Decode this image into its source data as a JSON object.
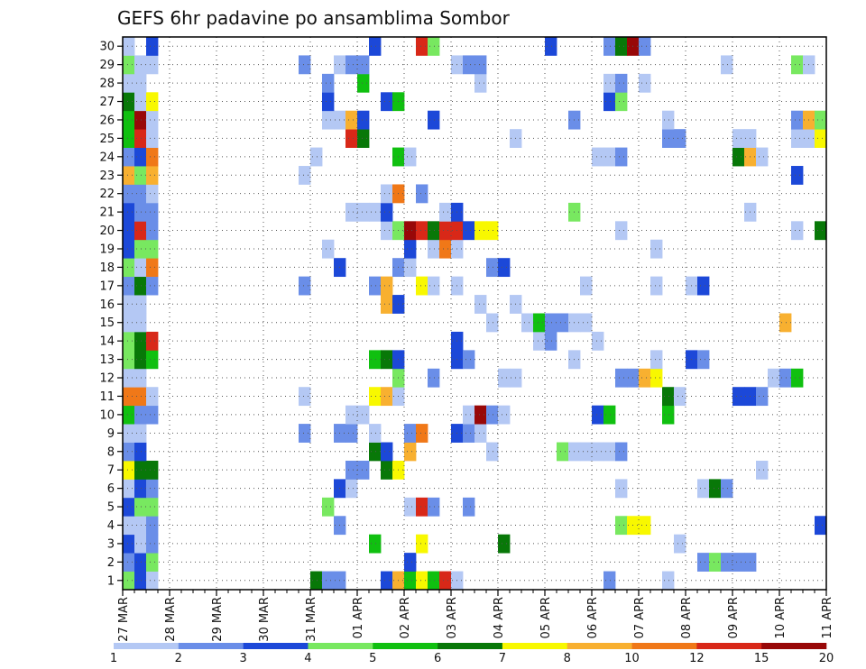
{
  "chart_data": {
    "type": "heatmap",
    "title": "GEFS 6hr padavine po ansamblima Sombor",
    "xlabel": "",
    "ylabel": "",
    "y_categories": [
      1,
      2,
      3,
      4,
      5,
      6,
      7,
      8,
      9,
      10,
      11,
      12,
      13,
      14,
      15,
      16,
      17,
      18,
      19,
      20,
      21,
      22,
      23,
      24,
      25,
      26,
      27,
      28,
      29,
      30
    ],
    "x_tick_labels": [
      "27 MAR",
      "28 MAR",
      "29 MAR",
      "30 MAR",
      "31 MAR",
      "01 APR",
      "02 APR",
      "03 APR",
      "04 APR",
      "05 APR",
      "06 APR",
      "07 APR",
      "08 APR",
      "09 APR",
      "10 APR",
      "11 APR"
    ],
    "x_steps_total": 60,
    "steps_per_day": 4,
    "grid": true,
    "legend": {
      "placement": "bottom",
      "tick_labels": [
        "1",
        "2",
        "3",
        "4",
        "5",
        "6",
        "7",
        "8",
        "10",
        "12",
        "15",
        "20"
      ],
      "colors": [
        "#b4c8f4",
        "#6a8ee8",
        "#1c48d8",
        "#78e860",
        "#10c010",
        "#087808",
        "#f8f800",
        "#f8b030",
        "#f07818",
        "#d82818",
        "#980808"
      ]
    },
    "cells": [
      [
        1,
        0,
        4
      ],
      [
        1,
        1,
        3
      ],
      [
        1,
        2,
        1
      ],
      [
        1,
        16,
        6
      ],
      [
        1,
        17,
        2
      ],
      [
        1,
        18,
        2
      ],
      [
        1,
        22,
        3
      ],
      [
        1,
        23,
        8
      ],
      [
        1,
        24,
        5
      ],
      [
        1,
        25,
        7
      ],
      [
        1,
        26,
        5
      ],
      [
        1,
        27,
        10
      ],
      [
        1,
        28,
        1
      ],
      [
        1,
        41,
        2
      ],
      [
        1,
        46,
        1
      ],
      [
        2,
        0,
        2
      ],
      [
        2,
        1,
        3
      ],
      [
        2,
        2,
        4
      ],
      [
        2,
        24,
        3
      ],
      [
        2,
        49,
        2
      ],
      [
        2,
        50,
        4
      ],
      [
        2,
        51,
        2
      ],
      [
        2,
        52,
        2
      ],
      [
        2,
        53,
        2
      ],
      [
        3,
        0,
        3
      ],
      [
        3,
        1,
        1
      ],
      [
        3,
        2,
        2
      ],
      [
        3,
        21,
        5
      ],
      [
        3,
        25,
        7
      ],
      [
        3,
        32,
        6
      ],
      [
        3,
        47,
        1
      ],
      [
        4,
        0,
        1
      ],
      [
        4,
        1,
        1
      ],
      [
        4,
        2,
        2
      ],
      [
        4,
        18,
        2
      ],
      [
        4,
        42,
        4
      ],
      [
        4,
        43,
        7
      ],
      [
        4,
        44,
        7
      ],
      [
        4,
        59,
        3
      ],
      [
        5,
        0,
        3
      ],
      [
        5,
        1,
        4
      ],
      [
        5,
        2,
        4
      ],
      [
        5,
        17,
        4
      ],
      [
        5,
        24,
        1
      ],
      [
        5,
        25,
        10
      ],
      [
        5,
        26,
        2
      ],
      [
        5,
        29,
        2
      ],
      [
        6,
        0,
        1
      ],
      [
        6,
        1,
        3
      ],
      [
        6,
        2,
        2
      ],
      [
        6,
        18,
        3
      ],
      [
        6,
        19,
        1
      ],
      [
        6,
        42,
        1
      ],
      [
        6,
        49,
        1
      ],
      [
        6,
        50,
        6
      ],
      [
        6,
        51,
        2
      ],
      [
        7,
        0,
        7
      ],
      [
        7,
        1,
        6
      ],
      [
        7,
        2,
        6
      ],
      [
        7,
        19,
        2
      ],
      [
        7,
        20,
        2
      ],
      [
        7,
        22,
        6
      ],
      [
        7,
        23,
        7
      ],
      [
        7,
        54,
        1
      ],
      [
        8,
        0,
        2
      ],
      [
        8,
        1,
        3
      ],
      [
        8,
        21,
        6
      ],
      [
        8,
        22,
        3
      ],
      [
        8,
        24,
        8
      ],
      [
        8,
        31,
        1
      ],
      [
        8,
        37,
        4
      ],
      [
        8,
        38,
        1
      ],
      [
        8,
        39,
        1
      ],
      [
        8,
        40,
        1
      ],
      [
        8,
        41,
        1
      ],
      [
        8,
        42,
        2
      ],
      [
        9,
        0,
        1
      ],
      [
        9,
        1,
        1
      ],
      [
        9,
        15,
        2
      ],
      [
        9,
        18,
        2
      ],
      [
        9,
        19,
        2
      ],
      [
        9,
        21,
        1
      ],
      [
        9,
        24,
        2
      ],
      [
        9,
        25,
        9
      ],
      [
        9,
        28,
        3
      ],
      [
        9,
        29,
        2
      ],
      [
        9,
        30,
        1
      ],
      [
        10,
        0,
        5
      ],
      [
        10,
        1,
        2
      ],
      [
        10,
        2,
        2
      ],
      [
        10,
        19,
        1
      ],
      [
        10,
        20,
        1
      ],
      [
        10,
        29,
        1
      ],
      [
        10,
        30,
        11
      ],
      [
        10,
        31,
        2
      ],
      [
        10,
        32,
        1
      ],
      [
        10,
        40,
        3
      ],
      [
        10,
        41,
        5
      ],
      [
        10,
        46,
        5
      ],
      [
        11,
        0,
        9
      ],
      [
        11,
        1,
        9
      ],
      [
        11,
        2,
        1
      ],
      [
        11,
        15,
        1
      ],
      [
        11,
        21,
        7
      ],
      [
        11,
        22,
        8
      ],
      [
        11,
        23,
        1
      ],
      [
        11,
        46,
        6
      ],
      [
        11,
        47,
        1
      ],
      [
        11,
        52,
        3
      ],
      [
        11,
        53,
        3
      ],
      [
        11,
        54,
        2
      ],
      [
        12,
        0,
        1
      ],
      [
        12,
        1,
        1
      ],
      [
        12,
        23,
        4
      ],
      [
        12,
        26,
        2
      ],
      [
        12,
        32,
        1
      ],
      [
        12,
        33,
        1
      ],
      [
        12,
        42,
        2
      ],
      [
        12,
        43,
        2
      ],
      [
        12,
        44,
        8
      ],
      [
        12,
        45,
        7
      ],
      [
        12,
        55,
        1
      ],
      [
        12,
        56,
        2
      ],
      [
        12,
        57,
        5
      ],
      [
        13,
        0,
        4
      ],
      [
        13,
        1,
        6
      ],
      [
        13,
        2,
        5
      ],
      [
        13,
        21,
        5
      ],
      [
        13,
        22,
        6
      ],
      [
        13,
        23,
        3
      ],
      [
        13,
        28,
        3
      ],
      [
        13,
        29,
        2
      ],
      [
        13,
        38,
        1
      ],
      [
        13,
        45,
        1
      ],
      [
        13,
        48,
        3
      ],
      [
        13,
        49,
        2
      ],
      [
        14,
        0,
        4
      ],
      [
        14,
        1,
        6
      ],
      [
        14,
        2,
        10
      ],
      [
        14,
        28,
        3
      ],
      [
        14,
        35,
        1
      ],
      [
        14,
        36,
        2
      ],
      [
        14,
        40,
        1
      ],
      [
        15,
        0,
        1
      ],
      [
        15,
        1,
        1
      ],
      [
        15,
        31,
        1
      ],
      [
        15,
        34,
        1
      ],
      [
        15,
        35,
        5
      ],
      [
        15,
        36,
        2
      ],
      [
        15,
        37,
        2
      ],
      [
        15,
        38,
        1
      ],
      [
        15,
        39,
        1
      ],
      [
        15,
        56,
        8
      ],
      [
        16,
        0,
        1
      ],
      [
        16,
        1,
        1
      ],
      [
        16,
        22,
        8
      ],
      [
        16,
        23,
        3
      ],
      [
        16,
        30,
        1
      ],
      [
        16,
        33,
        1
      ],
      [
        17,
        0,
        2
      ],
      [
        17,
        1,
        6
      ],
      [
        17,
        2,
        2
      ],
      [
        17,
        15,
        2
      ],
      [
        17,
        21,
        2
      ],
      [
        17,
        22,
        8
      ],
      [
        17,
        25,
        7
      ],
      [
        17,
        26,
        1
      ],
      [
        17,
        28,
        1
      ],
      [
        17,
        39,
        1
      ],
      [
        17,
        45,
        1
      ],
      [
        17,
        48,
        1
      ],
      [
        17,
        49,
        3
      ],
      [
        18,
        0,
        4
      ],
      [
        18,
        1,
        1
      ],
      [
        18,
        2,
        9
      ],
      [
        18,
        18,
        3
      ],
      [
        18,
        23,
        2
      ],
      [
        18,
        24,
        1
      ],
      [
        18,
        31,
        2
      ],
      [
        18,
        32,
        3
      ],
      [
        19,
        0,
        3
      ],
      [
        19,
        1,
        4
      ],
      [
        19,
        2,
        4
      ],
      [
        19,
        17,
        1
      ],
      [
        19,
        24,
        3
      ],
      [
        19,
        26,
        1
      ],
      [
        19,
        27,
        9
      ],
      [
        19,
        28,
        1
      ],
      [
        19,
        45,
        1
      ],
      [
        20,
        0,
        3
      ],
      [
        20,
        1,
        10
      ],
      [
        20,
        2,
        2
      ],
      [
        20,
        22,
        1
      ],
      [
        20,
        23,
        4
      ],
      [
        20,
        24,
        11
      ],
      [
        20,
        25,
        10
      ],
      [
        20,
        26,
        6
      ],
      [
        20,
        27,
        10
      ],
      [
        20,
        28,
        10
      ],
      [
        20,
        29,
        3
      ],
      [
        20,
        30,
        7
      ],
      [
        20,
        31,
        7
      ],
      [
        20,
        42,
        1
      ],
      [
        20,
        57,
        1
      ],
      [
        20,
        59,
        6
      ],
      [
        21,
        0,
        3
      ],
      [
        21,
        1,
        2
      ],
      [
        21,
        2,
        2
      ],
      [
        21,
        19,
        1
      ],
      [
        21,
        20,
        1
      ],
      [
        21,
        21,
        1
      ],
      [
        21,
        22,
        3
      ],
      [
        21,
        27,
        1
      ],
      [
        21,
        28,
        3
      ],
      [
        21,
        38,
        4
      ],
      [
        21,
        53,
        1
      ],
      [
        22,
        0,
        2
      ],
      [
        22,
        1,
        2
      ],
      [
        22,
        2,
        1
      ],
      [
        22,
        22,
        1
      ],
      [
        22,
        23,
        9
      ],
      [
        22,
        25,
        2
      ],
      [
        23,
        0,
        8
      ],
      [
        23,
        1,
        4
      ],
      [
        23,
        2,
        8
      ],
      [
        23,
        15,
        1
      ],
      [
        23,
        57,
        3
      ],
      [
        24,
        0,
        2
      ],
      [
        24,
        1,
        3
      ],
      [
        24,
        2,
        9
      ],
      [
        24,
        16,
        1
      ],
      [
        24,
        23,
        5
      ],
      [
        24,
        24,
        1
      ],
      [
        24,
        40,
        1
      ],
      [
        24,
        41,
        1
      ],
      [
        24,
        42,
        2
      ],
      [
        24,
        52,
        6
      ],
      [
        24,
        53,
        8
      ],
      [
        24,
        54,
        1
      ],
      [
        25,
        0,
        5
      ],
      [
        25,
        1,
        10
      ],
      [
        25,
        2,
        1
      ],
      [
        25,
        19,
        10
      ],
      [
        25,
        20,
        6
      ],
      [
        25,
        33,
        1
      ],
      [
        25,
        46,
        2
      ],
      [
        25,
        47,
        2
      ],
      [
        25,
        52,
        1
      ],
      [
        25,
        53,
        1
      ],
      [
        25,
        57,
        1
      ],
      [
        25,
        58,
        1
      ],
      [
        25,
        59,
        7
      ],
      [
        26,
        0,
        5
      ],
      [
        26,
        1,
        11
      ],
      [
        26,
        2,
        1
      ],
      [
        26,
        17,
        1
      ],
      [
        26,
        18,
        1
      ],
      [
        26,
        19,
        8
      ],
      [
        26,
        20,
        3
      ],
      [
        26,
        26,
        3
      ],
      [
        26,
        38,
        2
      ],
      [
        26,
        46,
        1
      ],
      [
        26,
        57,
        2
      ],
      [
        26,
        58,
        8
      ],
      [
        26,
        59,
        4
      ],
      [
        27,
        0,
        6
      ],
      [
        27,
        1,
        1
      ],
      [
        27,
        2,
        7
      ],
      [
        27,
        17,
        3
      ],
      [
        27,
        22,
        3
      ],
      [
        27,
        23,
        5
      ],
      [
        27,
        41,
        3
      ],
      [
        27,
        42,
        4
      ],
      [
        28,
        0,
        1
      ],
      [
        28,
        1,
        1
      ],
      [
        28,
        17,
        2
      ],
      [
        28,
        20,
        5
      ],
      [
        28,
        30,
        1
      ],
      [
        28,
        41,
        1
      ],
      [
        28,
        42,
        2
      ],
      [
        28,
        44,
        1
      ],
      [
        29,
        0,
        4
      ],
      [
        29,
        1,
        1
      ],
      [
        29,
        2,
        1
      ],
      [
        29,
        15,
        2
      ],
      [
        29,
        18,
        1
      ],
      [
        29,
        19,
        2
      ],
      [
        29,
        20,
        2
      ],
      [
        29,
        28,
        1
      ],
      [
        29,
        29,
        2
      ],
      [
        29,
        30,
        2
      ],
      [
        29,
        51,
        1
      ],
      [
        29,
        57,
        4
      ],
      [
        29,
        58,
        1
      ],
      [
        30,
        0,
        1
      ],
      [
        30,
        2,
        3
      ],
      [
        30,
        21,
        3
      ],
      [
        30,
        25,
        10
      ],
      [
        30,
        26,
        4
      ],
      [
        30,
        36,
        3
      ],
      [
        30,
        41,
        2
      ],
      [
        30,
        42,
        6
      ],
      [
        30,
        43,
        11
      ],
      [
        30,
        44,
        2
      ]
    ]
  }
}
